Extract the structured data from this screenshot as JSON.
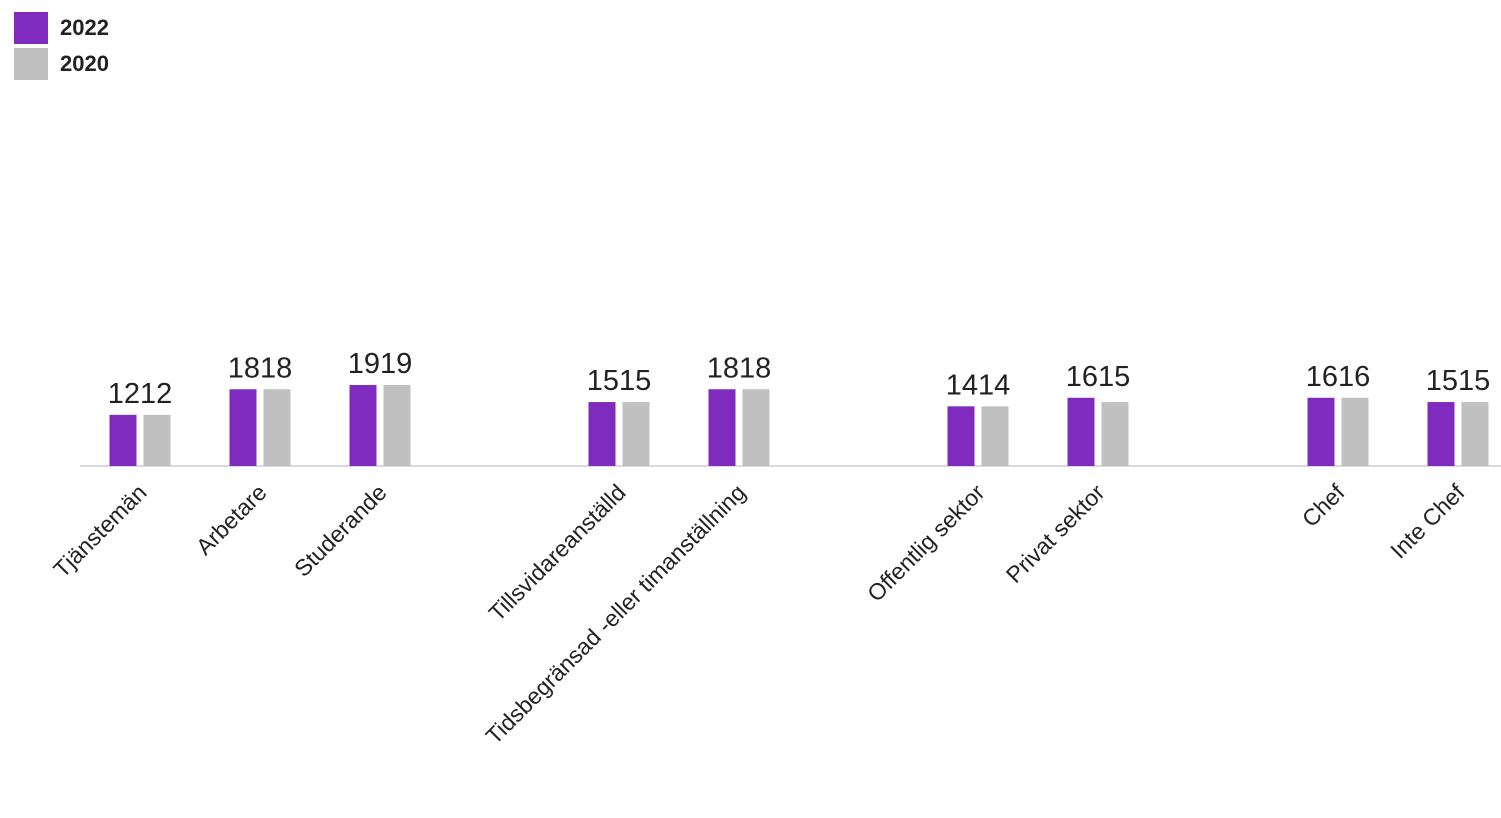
{
  "chart_data": {
    "type": "bar",
    "categories": [
      "Tjänstemän",
      "Arbetare",
      "Studerande",
      "Tillsvidareanställd",
      "Tidsbegränsad -eller timanställning",
      "Offentlig sektor",
      "Privat sektor",
      "Chef",
      "Inte Chef"
    ],
    "series": [
      {
        "name": "2022",
        "values": [
          12,
          18,
          19,
          15,
          18,
          14,
          16,
          16,
          15
        ]
      },
      {
        "name": "2020",
        "values": [
          12,
          18,
          19,
          15,
          18,
          14,
          15,
          16,
          15
        ]
      }
    ],
    "data_labels": [
      "1212",
      "1818",
      "1919",
      "1515",
      "1818",
      "1414",
      "1615",
      "1616",
      "1515"
    ],
    "ylim": [
      0,
      19
    ],
    "legend_position": "top-left",
    "grid": false
  },
  "colors": {
    "2022": "#7f2bbd",
    "2020": "#c0c0c0",
    "axis": "#d9d9df"
  }
}
